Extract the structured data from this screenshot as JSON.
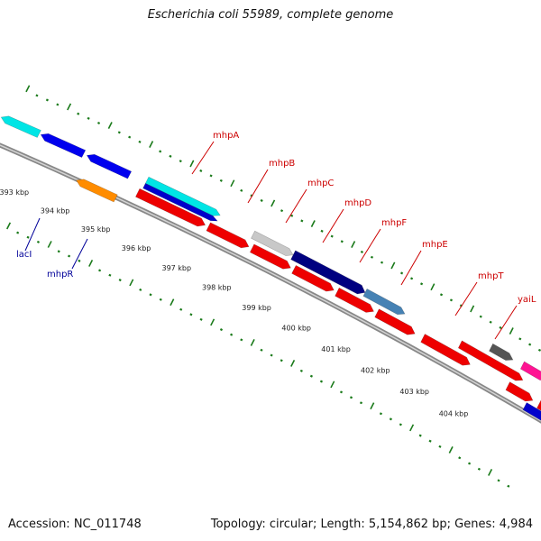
{
  "title": "Escherichia coli 55989, complete genome",
  "footer": {
    "accession": "Accession: NC_011748",
    "topology": "Topology: circular; Length: 5,154,862 bp; Genes: 4,984"
  },
  "colors": {
    "forward_label": "#cc0000",
    "reverse_label": "#000099",
    "tick": "#1a7a1a",
    "backbone": "#888888"
  },
  "scale_labels": [
    "393 kbp",
    "394 kbp",
    "395 kbp",
    "396 kbp",
    "397 kbp",
    "398 kbp",
    "399 kbp",
    "400 kbp",
    "401 kbp",
    "402 kbp",
    "403 kbp",
    "404 kbp"
  ],
  "gene_labels": [
    {
      "name": "lacI",
      "strand": "reverse"
    },
    {
      "name": "mhpR",
      "strand": "reverse"
    },
    {
      "name": "mhpA",
      "strand": "forward"
    },
    {
      "name": "mhpB",
      "strand": "forward"
    },
    {
      "name": "mhpC",
      "strand": "forward"
    },
    {
      "name": "mhpD",
      "strand": "forward"
    },
    {
      "name": "mhpF",
      "strand": "forward"
    },
    {
      "name": "mhpE",
      "strand": "forward"
    },
    {
      "name": "mhpT",
      "strand": "forward"
    },
    {
      "name": "yaiL",
      "strand": "forward"
    }
  ],
  "features": [
    {
      "track": "outer",
      "color": "#00e5e5",
      "dir": -1
    },
    {
      "track": "outer",
      "color": "#0000ee",
      "dir": -1
    },
    {
      "track": "outer",
      "color": "#0000ee",
      "dir": -1
    },
    {
      "track": "outer",
      "color": "#00e5e5",
      "dir": 1
    },
    {
      "track": "outer",
      "color": "#0000cc",
      "dir": 1
    },
    {
      "track": "outer",
      "color": "#c8c8c8",
      "dir": 1
    },
    {
      "track": "outer",
      "color": "#000080",
      "dir": 1
    },
    {
      "track": "outer",
      "color": "#4682b4",
      "dir": 1
    },
    {
      "track": "outer",
      "color": "#ee0000",
      "dir": 1
    },
    {
      "track": "outer",
      "color": "#555555",
      "dir": 1
    },
    {
      "track": "outer",
      "color": "#ff1493",
      "dir": 1
    },
    {
      "track": "outer",
      "color": "#0000cc",
      "dir": 1
    },
    {
      "track": "inner",
      "color": "#ff8c00",
      "dir": -1
    },
    {
      "track": "inner",
      "color": "#ee0000",
      "dir": 1
    },
    {
      "track": "inner",
      "color": "#ee0000",
      "dir": 1
    },
    {
      "track": "inner",
      "color": "#ee0000",
      "dir": 1
    },
    {
      "track": "inner",
      "color": "#ee0000",
      "dir": 1
    },
    {
      "track": "inner",
      "color": "#ee0000",
      "dir": 1
    },
    {
      "track": "inner",
      "color": "#ee0000",
      "dir": 1
    },
    {
      "track": "inner",
      "color": "#ee0000",
      "dir": 1
    },
    {
      "track": "inner",
      "color": "#ee0000",
      "dir": 1
    },
    {
      "track": "inner",
      "color": "#ee0000",
      "dir": 1
    },
    {
      "track": "inner",
      "color": "#c8c8c8",
      "dir": 1
    }
  ]
}
